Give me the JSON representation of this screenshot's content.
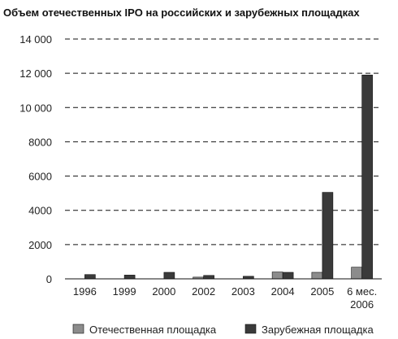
{
  "chart_data": {
    "type": "bar",
    "title": "Объем отечественных IPO на российских и зарубежных площадках",
    "categories": [
      "1996",
      "1999",
      "2000",
      "2002",
      "2003",
      "2004",
      "2005",
      "6 мес.\n2006"
    ],
    "series": [
      {
        "name": "Отечественная площадка",
        "color": "#8c8c8c",
        "values": [
          0,
          0,
          0,
          100,
          0,
          400,
          380,
          680
        ]
      },
      {
        "name": "Зарубежная площадка",
        "color": "#3a3a3a",
        "values": [
          250,
          220,
          380,
          200,
          150,
          380,
          5050,
          11900
        ]
      }
    ],
    "y_ticks": [
      "14 000",
      "12 000",
      "10 000",
      "8000",
      "6000",
      "4000",
      "2000",
      "0"
    ],
    "ylim": [
      0,
      14000
    ],
    "grid": true,
    "legend_position": "bottom"
  }
}
